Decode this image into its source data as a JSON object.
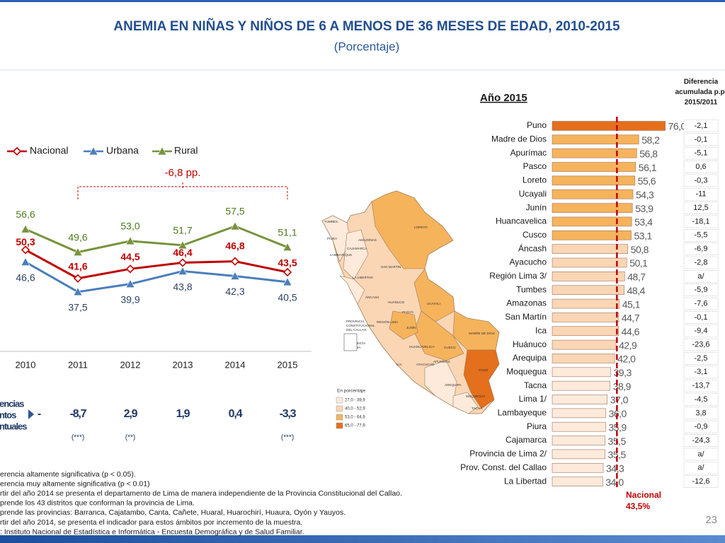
{
  "title": "ANEMIA EN NIÑAS Y NIÑOS DE 6 A MENOS DE 36 MESES DE EDAD, 2010-2015",
  "subtitle": "(Porcentaje)",
  "page_number": "23",
  "chart_data": [
    {
      "type": "line",
      "categories": [
        "2010",
        "2011",
        "2012",
        "2013",
        "2014",
        "2015"
      ],
      "ylim": [
        20,
        70
      ],
      "annotation": "-6,8 pp.",
      "series": [
        {
          "name": "Nacional",
          "color": "#c00000",
          "label_color": "#c00000",
          "marker": "diamond",
          "values": [
            50.3,
            41.6,
            44.5,
            46.4,
            46.8,
            43.5
          ],
          "value_labels": [
            "50,3",
            "41,6",
            "44,5",
            "46,4",
            "46,8",
            "43,5"
          ]
        },
        {
          "name": "Urbana",
          "color": "#4a7ebb",
          "label_color": "#2f4266",
          "marker": "triangle",
          "values": [
            46.6,
            37.5,
            39.9,
            43.8,
            42.3,
            40.5
          ],
          "value_labels": [
            "46,6",
            "37,5",
            "39,9",
            "43,8",
            "42,3",
            "40,5"
          ]
        },
        {
          "name": "Rural",
          "color": "#77933c",
          "label_color": "#4f7a1e",
          "marker": "triangle",
          "values": [
            56.6,
            49.6,
            53.0,
            51.7,
            57.5,
            51.1
          ],
          "value_labels": [
            "56,6",
            "49,6",
            "53,0",
            "51,7",
            "57,5",
            "51,1"
          ]
        }
      ]
    },
    {
      "type": "hbar",
      "title": "Año 2015",
      "categories": [
        "Puno",
        "Madre de Dios",
        "Apurímac",
        "Pasco",
        "Loreto",
        "Ucayali",
        "Junín",
        "Huancavelica",
        "Cusco",
        "Áncash",
        "Ayacucho",
        "Región Lima  3/",
        "Tumbes",
        "Amazonas",
        "San Martín",
        "Ica",
        "Huánuco",
        "Arequipa",
        "Moquegua",
        "Tacna",
        "Lima  1/",
        "Lambayeque",
        "Piura",
        "Cajamarca",
        "Provincia de Lima  2/",
        "Prov. Const. del Callao",
        "La Libertad"
      ],
      "values": [
        76.0,
        58.2,
        56.8,
        56.1,
        55.6,
        54.3,
        53.9,
        53.4,
        53.1,
        50.8,
        50.1,
        48.7,
        48.4,
        45.1,
        44.7,
        44.6,
        42.9,
        42.0,
        39.3,
        38.9,
        37.0,
        36.0,
        35.9,
        35.5,
        35.5,
        34.3,
        34.0
      ],
      "value_labels": [
        "76,0",
        "58,2",
        "56,8",
        "56,1",
        "55,6",
        "54,3",
        "53,9",
        "53,4",
        "53,1",
        "50,8",
        "50,1",
        "48,7",
        "48,4",
        "45,1",
        "44,7",
        "44,6",
        "42,9",
        "42,0",
        "39,3",
        "38,9",
        "37,0",
        "36,0",
        "35,9",
        "35,5",
        "35,5",
        "34,3",
        "34,0"
      ],
      "xlim": [
        0,
        80
      ],
      "reference": {
        "label": "Nacional",
        "value": 43.5,
        "value_label": "43,5%",
        "color": "#c00000"
      }
    }
  ],
  "variation": {
    "side_label": [
      "encias",
      "ntos",
      "ntuales"
    ],
    "values": [
      "-",
      "-8,7",
      "2,9",
      "1,9",
      "0,4",
      "-3,3"
    ],
    "significance": [
      null,
      "(***)",
      "(**)",
      null,
      null,
      "(***)"
    ]
  },
  "differences": {
    "header": [
      "Diferencia",
      "acumulada p.p.",
      "2015/2011"
    ],
    "rows": [
      "-2,1",
      "-0,1",
      "-5,1",
      "0,6",
      "-0,3",
      "-11",
      "12,5",
      "-18,1",
      "-5,5",
      "-6,9",
      "-2,8",
      "a/",
      "-5,9",
      "-7,6",
      "-0,1",
      "-9,4",
      "-23,6",
      "-2,5",
      "-3,1",
      "-13,7",
      "-4,5",
      "3,8",
      "-0,9",
      "-24,3",
      "a/",
      "a/",
      "-12,6"
    ]
  },
  "map": {
    "labels": [
      "TUMBES",
      "PIURA",
      "LAMBAYEQUE",
      "CAJAMARCA",
      "AMAZONAS",
      "LORETO",
      "SAN MARTÍN",
      "LA LIBERTAD",
      "ÁNCASH",
      "HUÁNUCO",
      "UCAYALI",
      "PASCO",
      "REGIÓN LIMA",
      "JUNÍN",
      "HUANCAVELICA",
      "CUSCO",
      "MADRE DE DIOS",
      "ICA",
      "AYACUCHO",
      "APURÍMAC",
      "PUNO",
      "AREQUIPA",
      "MOQUEGUA",
      "TACNA",
      "PROVINCIA",
      "CONSTITUCIONAL",
      "DEL CALLAO",
      "PROVINCIA",
      "DE LIMA"
    ],
    "legend": {
      "title": "En porcentaje",
      "bins": [
        {
          "label": "27,0 - 39,9",
          "min": 27.0,
          "max": 39.9,
          "color": "#fdeadb"
        },
        {
          "label": "40,0 - 52,9",
          "min": 40.0,
          "max": 52.9,
          "color": "#fad6b5"
        },
        {
          "label": "53,0 - 64,9",
          "min": 53.0,
          "max": 64.9,
          "color": "#f5b35c"
        },
        {
          "label": "65,0 - 77,9",
          "min": 65.0,
          "max": 77.9,
          "color": "#e46f1c"
        }
      ]
    }
  },
  "footnotes": [
    "erencia altamente significativa (p < 0.05).",
    "erencia muy altamente significativa (p < 0.01)",
    "rtir del año 2014 se presenta el departamento de Lima de manera independiente de la Provincia Constitucional del Callao.",
    "prende los 43 distritos que conforman la provincia de Lima.",
    "prende las provincias: Barranca, Cajatambo, Canta, Cañete, Huaral, Huarochirí, Huaura, Oyón y Yauyos.",
    "rtir del año 2014, se presenta el indicador para estos ámbitos por incremento de la muestra.",
    ": Instituto Nacional de Estadística e Informática - Encuesta Demográfica y de Salud Familiar."
  ]
}
